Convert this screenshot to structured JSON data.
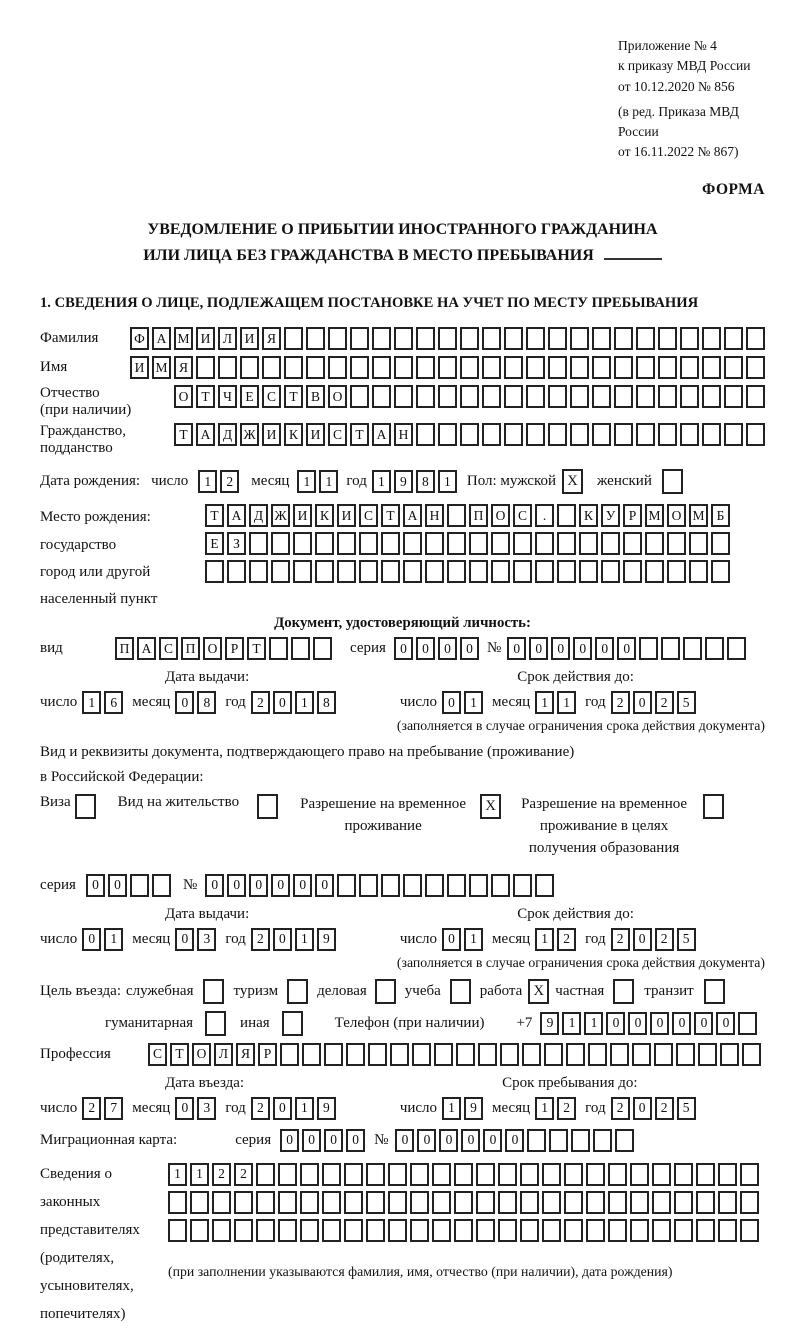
{
  "ref": {
    "line1": "Приложение № 4",
    "line2": "к приказу МВД России",
    "line3": "от 10.12.2020 № 856",
    "amend1": "(в ред. Приказа МВД России",
    "amend2": "от 16.11.2022 № 867)",
    "forma": "ФОРМА"
  },
  "title": {
    "line1": "УВЕДОМЛЕНИЕ О ПРИБЫТИИ ИНОСТРАННОГО ГРАЖДАНИНА",
    "line2": "ИЛИ ЛИЦА БЕЗ ГРАЖДАНСТВА В МЕСТО ПРЕБЫВАНИЯ"
  },
  "section1": {
    "heading": "1. СВЕДЕНИЯ О ЛИЦЕ, ПОДЛЕЖАЩЕМ ПОСТАНОВКЕ НА УЧЕТ ПО МЕСТУ ПРЕБЫВАНИЯ"
  },
  "date_words": {
    "day": "число",
    "month": "месяц",
    "year": "год"
  },
  "notes": {
    "validity": "(заполняется в случае ограничения срока действия документа)"
  },
  "person": {
    "surname": {
      "label": "Фамилия",
      "value": "ФАМИЛИЯ",
      "count": 29
    },
    "name": {
      "label": "Имя",
      "value": "ИМЯ",
      "count": 29
    },
    "patronymic": {
      "label": "Отчество",
      "sublabel": "(при наличии)",
      "value": "ОТЧЕСТВО",
      "count": 27
    },
    "citizenship": {
      "label": "Гражданство,",
      "sublabel": "подданство",
      "value": "ТАДЖИКИСТАН",
      "count": 27
    },
    "birth_date": {
      "label": "Дата рождения:",
      "day": "12",
      "month": "11",
      "year": "1981",
      "gender_label": "Пол: мужской",
      "male_checked": true,
      "female_label": "женский",
      "female_checked": false
    },
    "birth_place": {
      "labels": [
        "Место рождения:",
        "государство",
        "город или другой",
        "населенный пункт"
      ],
      "row1": {
        "value": "ТАДЖИКИСТАН ПОС. КУРМОМБ",
        "count": 24
      },
      "row2": {
        "value": "ЕЗ",
        "count": 24
      },
      "row3": {
        "value": "",
        "count": 24
      }
    }
  },
  "identity_doc": {
    "heading": "Документ, удостоверяющий личность:",
    "kind_label": "вид",
    "kind": {
      "value": "ПАСПОРТ",
      "count": 10
    },
    "series_label": "серия",
    "series": {
      "value": "0000",
      "count": 4
    },
    "number_sign": "№",
    "number": {
      "value": "000000",
      "count": 11
    },
    "issue_label": "Дата выдачи:",
    "issue": {
      "day": "16",
      "month": "08",
      "year": "2018"
    },
    "expiry_label": "Срок действия до:",
    "expiry": {
      "day": "01",
      "month": "11",
      "year": "2025"
    }
  },
  "residence_doc": {
    "intro1": "Вид и реквизиты документа, подтверждающего право на пребывание (проживание)",
    "intro2": "в Российской Федерации:",
    "opt_visa": {
      "label": "Виза",
      "checked": false
    },
    "opt_residence": {
      "label": "Вид на жительство",
      "checked": false
    },
    "opt_temp": {
      "line1": "Разрешение на временное",
      "line2": "проживание",
      "checked": true
    },
    "opt_edu": {
      "line1": "Разрешение на временное",
      "line2": "проживание в целях",
      "line3": "получения образования",
      "checked": false
    },
    "series_label": "серия",
    "series": {
      "value": "00",
      "count": 4
    },
    "number_sign": "№",
    "number": {
      "value": "000000",
      "count": 16
    },
    "issue_label": "Дата выдачи:",
    "issue": {
      "day": "01",
      "month": "03",
      "year": "2019"
    },
    "expiry_label": "Срок действия до:",
    "expiry": {
      "day": "01",
      "month": "12",
      "year": "2025"
    }
  },
  "visit": {
    "purpose_label": "Цель въезда:",
    "p1": {
      "label": "служебная",
      "checked": false
    },
    "p2": {
      "label": "туризм",
      "checked": false
    },
    "p3": {
      "label": "деловая",
      "checked": false
    },
    "p4": {
      "label": "учеба",
      "checked": false
    },
    "p5": {
      "label": "работа",
      "checked": true
    },
    "p6": {
      "label": "частная",
      "checked": false
    },
    "p7": {
      "label": "транзит",
      "checked": false
    },
    "p8": {
      "label": "гуманитарная",
      "checked": false
    },
    "p9": {
      "label": "иная",
      "checked": false
    },
    "phone_label": "Телефон (при наличии)",
    "phone_prefix": "+7",
    "phone": {
      "value": "911000000",
      "count": 10
    },
    "profession_label": "Профессия",
    "profession": {
      "value": "СТОЛЯР",
      "count": 28
    }
  },
  "stay": {
    "entry_label": "Дата въезда:",
    "entry": {
      "day": "27",
      "month": "03",
      "year": "2019"
    },
    "until_label": "Срок пребывания до:",
    "until": {
      "day": "19",
      "month": "12",
      "year": "2025"
    },
    "migration_label": "Миграционная карта:",
    "series_label": "серия",
    "series": {
      "value": "0000",
      "count": 4
    },
    "number_sign": "№",
    "number": {
      "value": "000000",
      "count": 11
    }
  },
  "guardians": {
    "labels": [
      "Сведения о",
      "законных",
      "представителях",
      "(родителях,",
      "усыновителях,",
      "попечителях)"
    ],
    "row1": {
      "value": "1122",
      "count": 27
    },
    "row2": {
      "value": "",
      "count": 27
    },
    "row3": {
      "value": "",
      "count": 27
    },
    "note": "(при заполнении указываются фамилия, имя, отчество (при наличии), дата рождения)"
  }
}
